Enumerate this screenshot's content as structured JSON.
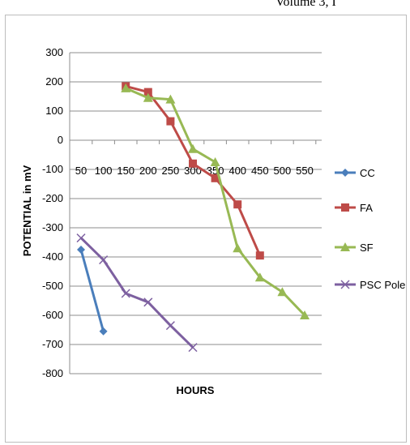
{
  "header": {
    "text": "Volume 3, I"
  },
  "chart_data": {
    "type": "line",
    "xlabel": "HOURS",
    "ylabel": "POTENTIAL in mV",
    "x_ticks": [
      50,
      100,
      150,
      200,
      250,
      300,
      350,
      400,
      450,
      500,
      550
    ],
    "y_ticks": [
      300,
      200,
      100,
      0,
      -100,
      -200,
      -300,
      -400,
      -500,
      -600,
      -700,
      -800
    ],
    "ylim": [
      -800,
      300
    ],
    "xlim": [
      25,
      575
    ],
    "grid": "horizontal",
    "legend_position": "right",
    "series": [
      {
        "name": "CC",
        "color": "#4a7ebb",
        "marker": "diamond",
        "x": [
          50,
          100
        ],
        "y": [
          -375,
          -655
        ]
      },
      {
        "name": "FA",
        "color": "#be4b48",
        "marker": "square",
        "x": [
          150,
          200,
          250,
          300,
          350,
          400,
          450
        ],
        "y": [
          185,
          165,
          65,
          -80,
          -130,
          -220,
          -395
        ]
      },
      {
        "name": "SF",
        "color": "#98b954",
        "marker": "triangle",
        "x": [
          150,
          200,
          250,
          300,
          350,
          400,
          450,
          500,
          550
        ],
        "y": [
          178,
          145,
          140,
          -30,
          -75,
          -370,
          -470,
          -520,
          -600
        ]
      },
      {
        "name": "PSC Pole",
        "color": "#7d60a0",
        "marker": "cross",
        "x": [
          50,
          100,
          150,
          200,
          250,
          300
        ],
        "y": [
          -335,
          -410,
          -525,
          -555,
          -635,
          -710
        ]
      }
    ]
  }
}
